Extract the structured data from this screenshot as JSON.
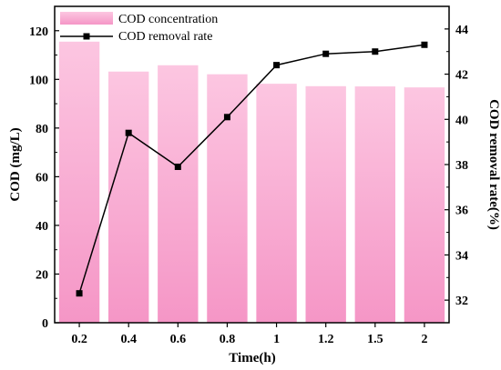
{
  "chart_data": {
    "type": "bar+line",
    "categories": [
      "0.2",
      "0.4",
      "0.6",
      "0.8",
      "1",
      "1.2",
      "1.5",
      "2"
    ],
    "series": [
      {
        "name": "COD concentration",
        "type": "bar",
        "axis": "left",
        "values": [
          115.5,
          103.2,
          105.8,
          102.1,
          98.2,
          97.2,
          97.1,
          96.7
        ],
        "color": "#f59ac9"
      },
      {
        "name": "COD removal rate",
        "type": "line",
        "axis": "right",
        "marker": "square",
        "values": [
          32.3,
          39.4,
          37.9,
          40.1,
          42.4,
          42.9,
          43.0,
          43.3
        ],
        "color": "#000000"
      }
    ],
    "xlabel": "Time(h)",
    "ylabel_left": "COD (mg/L)",
    "ylabel_right": "COD removal rate(%)",
    "ylim_left": [
      0,
      130
    ],
    "yticks_left": [
      "0",
      "20",
      "40",
      "60",
      "80",
      "100",
      "120"
    ],
    "ylim_right": [
      31,
      45
    ],
    "yticks_right": [
      "32",
      "34",
      "36",
      "38",
      "40",
      "42",
      "44"
    ],
    "legend_position": "top-left",
    "grid": false
  }
}
